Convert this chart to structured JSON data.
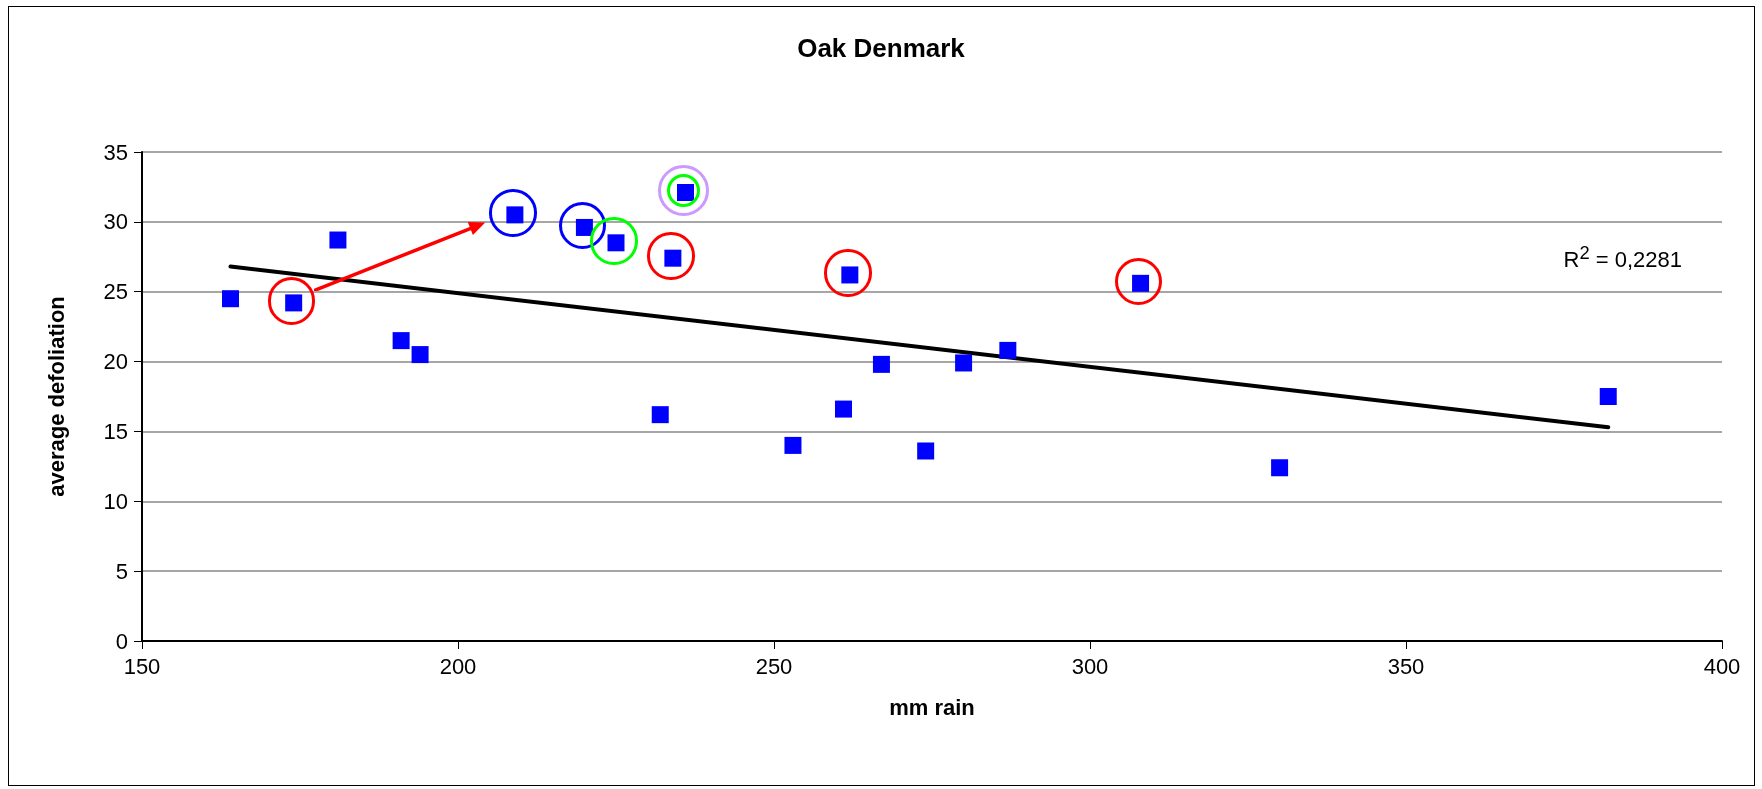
{
  "chart_data": {
    "type": "scatter",
    "title": "Oak Denmark",
    "xlabel": "mm rain",
    "ylabel": "average defoliation",
    "xlim": [
      150,
      400
    ],
    "xticks": [
      150,
      200,
      250,
      300,
      350,
      400
    ],
    "ylim": [
      0,
      35
    ],
    "yticks": [
      0,
      5,
      10,
      15,
      20,
      25,
      30,
      35
    ],
    "grid": "y",
    "marker": "square",
    "series": [
      {
        "color": "#0000ff",
        "x": [
          164,
          174,
          181,
          191,
          194,
          209,
          220,
          225,
          232,
          234,
          236,
          253,
          261,
          262,
          267,
          274,
          280,
          287,
          308,
          330,
          382
        ],
        "values": [
          24.5,
          24.2,
          28.7,
          21.5,
          20.5,
          30.5,
          29.6,
          28.5,
          16.2,
          27.4,
          32.1,
          14,
          16.6,
          26.2,
          19.8,
          13.6,
          19.9,
          20.8,
          25.6,
          12.4,
          17.5
        ]
      },
      {
        "type": "line",
        "color": "#000000",
        "marker": "none",
        "x": [
          164,
          382
        ],
        "values": [
          26.8,
          15.3
        ]
      }
    ],
    "annotations": [
      "R$^{2}$ = 0,2281"
    ]
  }
}
